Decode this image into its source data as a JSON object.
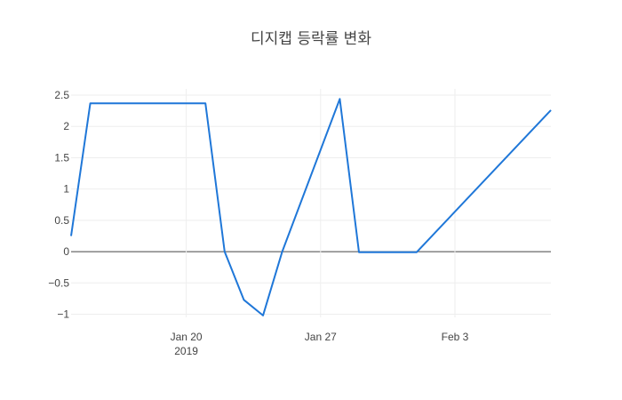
{
  "chart_data": {
    "type": "line",
    "title": "디지캡 등락률 변화",
    "xlabel": "",
    "ylabel": "",
    "x_start": "2019-01-14",
    "x_end": "2019-02-08",
    "ylim": [
      -1.05,
      2.6
    ],
    "grid": true,
    "zeroline": true,
    "color": "#1f77d8",
    "x_ticks": [
      {
        "date": "2019-01-20",
        "label": "Jan 20",
        "sublabel": "2019"
      },
      {
        "date": "2019-01-27",
        "label": "Jan 27",
        "sublabel": ""
      },
      {
        "date": "2019-02-03",
        "label": "Feb 3",
        "sublabel": ""
      }
    ],
    "y_ticks": [
      {
        "value": 2.5,
        "label": "2.5"
      },
      {
        "value": 2,
        "label": "2"
      },
      {
        "value": 1.5,
        "label": "1.5"
      },
      {
        "value": 1,
        "label": "1"
      },
      {
        "value": 0.5,
        "label": "0.5"
      },
      {
        "value": 0,
        "label": "0"
      },
      {
        "value": -0.5,
        "label": "−0.5"
      },
      {
        "value": -1,
        "label": "−1"
      }
    ],
    "series": [
      {
        "x": [
          "2019-01-14",
          "2019-01-15",
          "2019-01-21",
          "2019-01-22",
          "2019-01-23",
          "2019-01-24",
          "2019-01-25",
          "2019-01-28",
          "2019-01-29",
          "2019-02-01",
          "2019-02-08"
        ],
        "values": [
          0.25,
          2.37,
          2.37,
          0.0,
          -0.77,
          -1.02,
          0.0,
          2.44,
          -0.01,
          -0.01,
          2.26
        ]
      }
    ]
  }
}
